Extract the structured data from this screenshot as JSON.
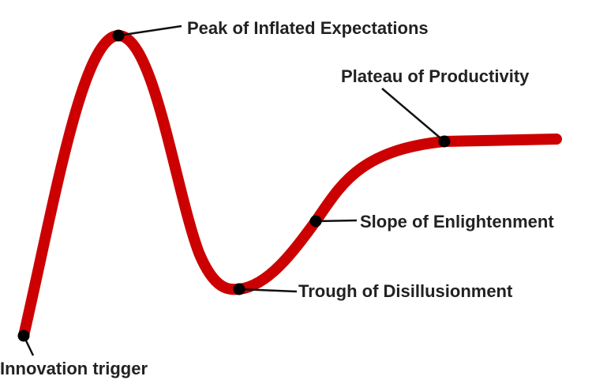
{
  "nodes": [
    {
      "label": "Innovation trigger"
    },
    {
      "label": "Peak of Inflated Expectations"
    },
    {
      "label": "Trough of Disillusionment"
    },
    {
      "label": "Slope of Enlightenment"
    },
    {
      "label": "Plateau of Productivity"
    }
  ]
}
